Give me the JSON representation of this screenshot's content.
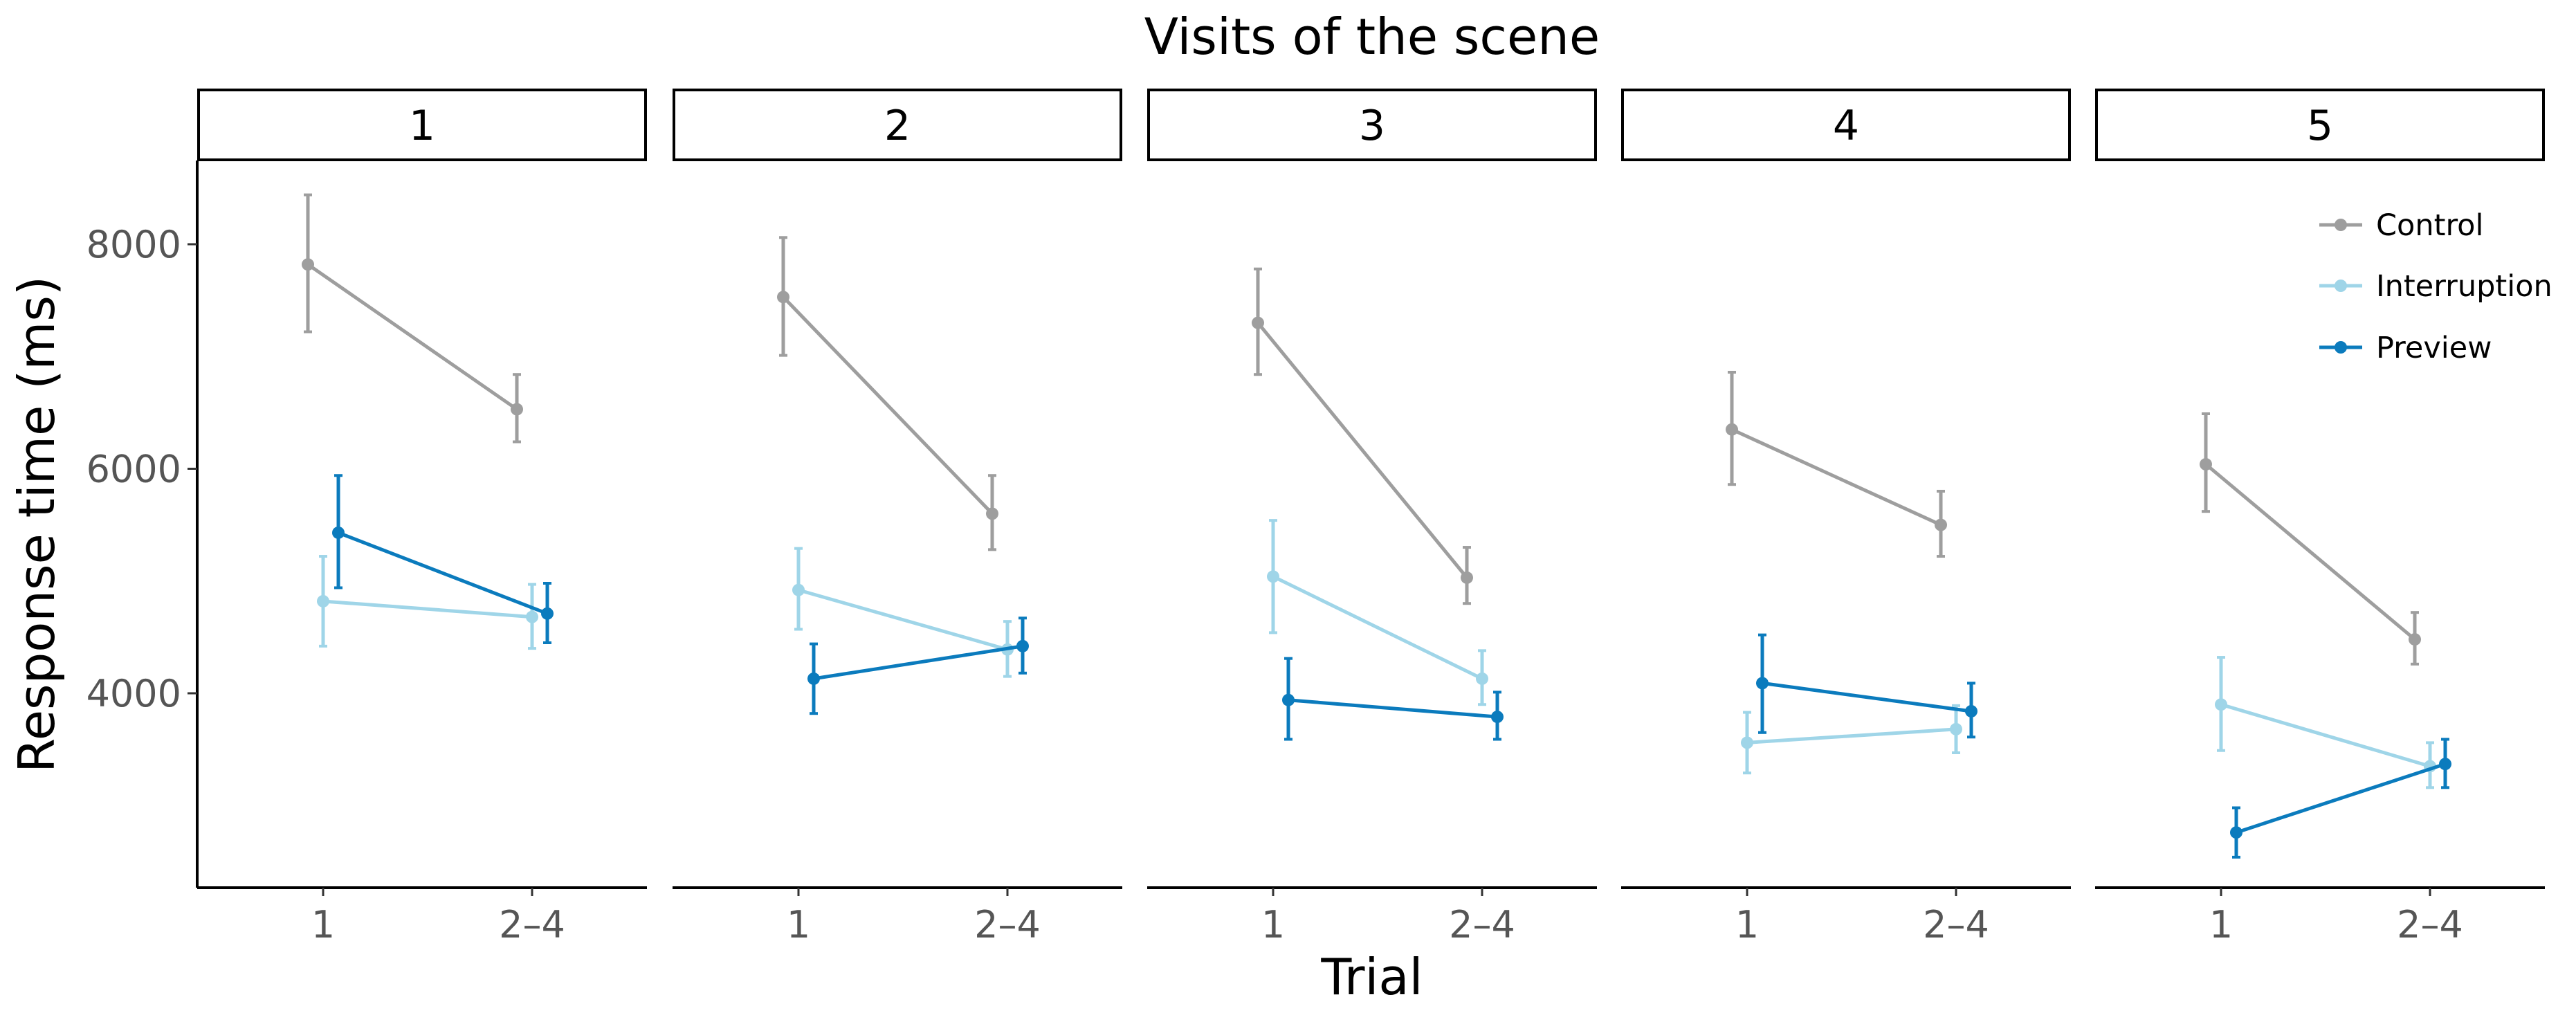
{
  "chart_data": {
    "type": "line",
    "title": "Visits of the scene",
    "xlabel": "Trial",
    "ylabel": "Response time (ms)",
    "categories": [
      "1",
      "2–4"
    ],
    "yticks": [
      "4000",
      "6000",
      "8000"
    ],
    "ylim": [
      2300,
      8750
    ],
    "legend_position": "top-right",
    "panels": [
      {
        "label": "1",
        "series": [
          {
            "name": "Control",
            "values": [
              7820,
              6530
            ],
            "lower": [
              7220,
              6240
            ],
            "upper": [
              8440,
              6840
            ]
          },
          {
            "name": "Interruption",
            "values": [
              4820,
              4680
            ],
            "lower": [
              4420,
              4400
            ],
            "upper": [
              5220,
              4970
            ]
          },
          {
            "name": "Preview",
            "values": [
              5430,
              4710
            ],
            "lower": [
              4940,
              4450
            ],
            "upper": [
              5940,
              4980
            ]
          }
        ]
      },
      {
        "label": "2",
        "series": [
          {
            "name": "Control",
            "values": [
              7530,
              5600
            ],
            "lower": [
              7010,
              5280
            ],
            "upper": [
              8060,
              5940
            ]
          },
          {
            "name": "Interruption",
            "values": [
              4920,
              4390
            ],
            "lower": [
              4570,
              4150
            ],
            "upper": [
              5290,
              4640
            ]
          },
          {
            "name": "Preview",
            "values": [
              4130,
              4420
            ],
            "lower": [
              3820,
              4180
            ],
            "upper": [
              4440,
              4670
            ]
          }
        ]
      },
      {
        "label": "3",
        "series": [
          {
            "name": "Control",
            "values": [
              7300,
              5030
            ],
            "lower": [
              6840,
              4800
            ],
            "upper": [
              7780,
              5300
            ]
          },
          {
            "name": "Interruption",
            "values": [
              5040,
              4130
            ],
            "lower": [
              4540,
              3900
            ],
            "upper": [
              5540,
              4380
            ]
          },
          {
            "name": "Preview",
            "values": [
              3940,
              3790
            ],
            "lower": [
              3590,
              3590
            ],
            "upper": [
              4310,
              4010
            ]
          }
        ]
      },
      {
        "label": "4",
        "series": [
          {
            "name": "Control",
            "values": [
              6350,
              5500
            ],
            "lower": [
              5860,
              5220
            ],
            "upper": [
              6860,
              5800
            ]
          },
          {
            "name": "Interruption",
            "values": [
              3560,
              3680
            ],
            "lower": [
              3290,
              3470
            ],
            "upper": [
              3830,
              3890
            ]
          },
          {
            "name": "Preview",
            "values": [
              4090,
              3840
            ],
            "lower": [
              3650,
              3610
            ],
            "upper": [
              4520,
              4090
            ]
          }
        ]
      },
      {
        "label": "5",
        "series": [
          {
            "name": "Control",
            "values": [
              6040,
              4480
            ],
            "lower": [
              5620,
              4260
            ],
            "upper": [
              6490,
              4720
            ]
          },
          {
            "name": "Interruption",
            "values": [
              3900,
              3350
            ],
            "lower": [
              3490,
              3160
            ],
            "upper": [
              4320,
              3560
            ]
          },
          {
            "name": "Preview",
            "values": [
              2760,
              3370
            ],
            "lower": [
              2540,
              3160
            ],
            "upper": [
              2980,
              3590
            ]
          }
        ]
      }
    ],
    "colors": {
      "Control": "#9e9e9e",
      "Interruption": "#9fd5e8",
      "Preview": "#0b7bbd"
    }
  }
}
